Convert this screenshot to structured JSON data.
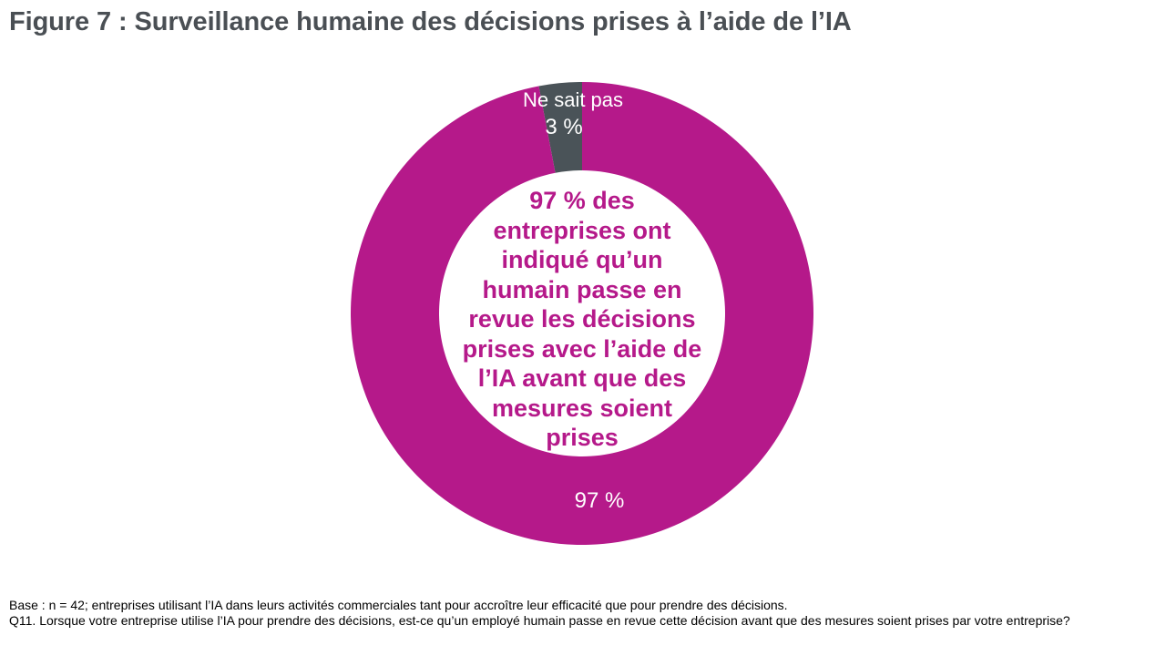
{
  "title": "Figure 7 : Surveillance humaine des décisions prises à l’aide de l’IA",
  "colors": {
    "title": "#4a4f54",
    "accent": "#b5198a",
    "secondary": "#4a5358",
    "label_text": "#ffffff"
  },
  "chart_data": {
    "type": "pie",
    "donut": true,
    "slices": [
      {
        "name": "Ne sait pas",
        "value": 3,
        "value_label": "3 %",
        "color": "#4a5358"
      },
      {
        "name": "",
        "value": 97,
        "value_label": "97 %",
        "color": "#b5198a"
      }
    ],
    "center_text": [
      "97 % des",
      "entreprises ont",
      "indiqué qu’un",
      "humain passe en",
      "revue les décisions",
      "prises avec l’aide de",
      "l’IA avant que des",
      "mesures soient",
      "prises"
    ]
  },
  "footnotes": {
    "base": "Base : n = 42; entreprises utilisant l’IA dans leurs activités commerciales tant pour accroître leur efficacité que pour prendre des décisions.",
    "question": "Q11. Lorsque votre entreprise utilise l’IA pour prendre des décisions, est-ce qu’un employé humain passe en revue cette décision avant que des mesures soient prises par votre entreprise?"
  }
}
